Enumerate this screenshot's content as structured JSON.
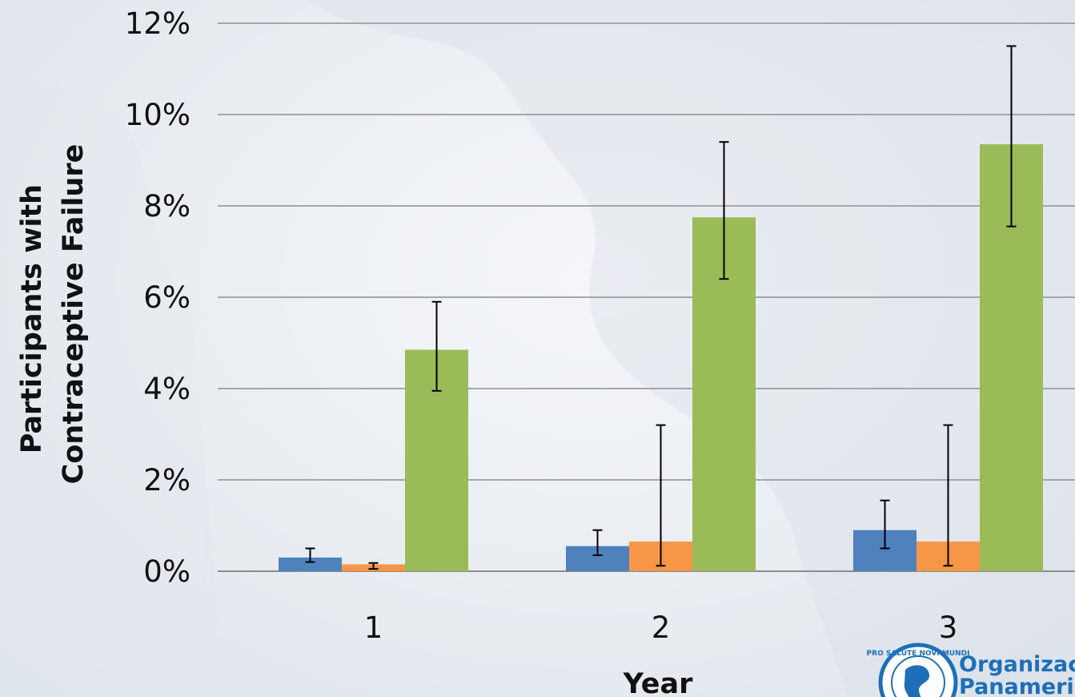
{
  "chart_data": {
    "type": "bar",
    "categories": [
      "1",
      "2",
      "3"
    ],
    "xlabel": "Year",
    "ylabel_lines": [
      "Participants with",
      "Contraceptive Failure"
    ],
    "ylim": [
      0,
      12
    ],
    "yticks": [
      0,
      2,
      4,
      6,
      8,
      10,
      12
    ],
    "ytick_labels": [
      "0%",
      "2%",
      "4%",
      "6%",
      "8%",
      "10%",
      "12%"
    ],
    "grid": true,
    "legend": "none",
    "series": [
      {
        "color": "#4f81bd",
        "values": [
          0.3,
          0.55,
          0.9
        ],
        "err_low": [
          0.2,
          0.35,
          0.5
        ],
        "err_high": [
          0.5,
          0.9,
          1.55
        ]
      },
      {
        "color": "#f79646",
        "values": [
          0.15,
          0.65,
          0.65
        ],
        "err_low": [
          0.05,
          0.12,
          0.12
        ],
        "err_high": [
          0.18,
          3.2,
          3.2
        ]
      },
      {
        "color": "#9bbb59",
        "values": [
          4.85,
          7.75,
          9.35
        ],
        "err_low": [
          3.95,
          6.4,
          7.55
        ],
        "err_high": [
          5.9,
          9.4,
          11.5
        ]
      }
    ]
  },
  "logo": {
    "line1": "Organización",
    "line2": "Panamericana",
    "seal_text": "PRO SALUTE NOVI MUNDI",
    "color": "#1d6fb8"
  }
}
